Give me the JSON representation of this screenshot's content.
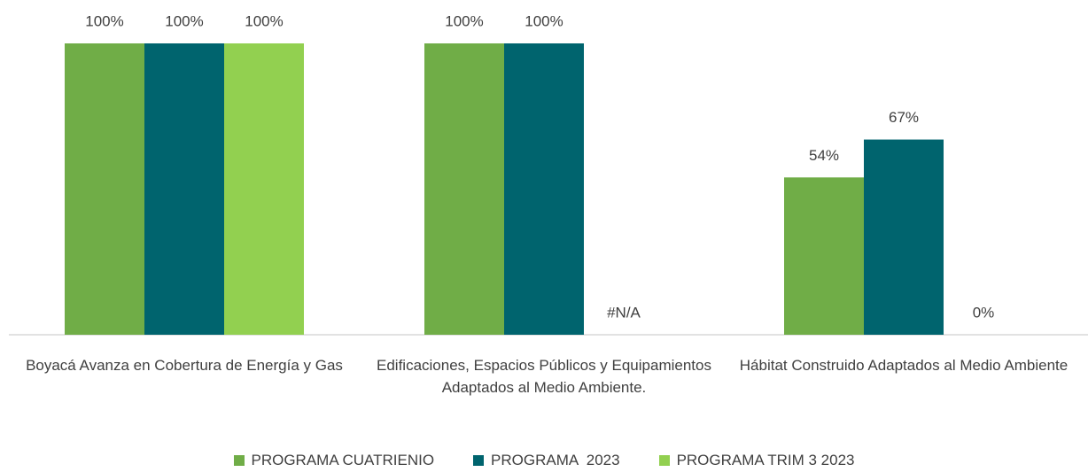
{
  "chart_data": {
    "type": "bar",
    "categories": [
      "Boyacá Avanza en Cobertura de Energía y Gas",
      "Edificaciones, Espacios Públicos y Equipamientos Adaptados al Medio Ambiente.",
      "Hábitat Construido Adaptados al Medio Ambiente"
    ],
    "series": [
      {
        "name": "PROGRAMA CUATRIENIO",
        "color": "#70ad47",
        "values": [
          100,
          100,
          54
        ],
        "value_labels": [
          "100%",
          "100%",
          "54%"
        ]
      },
      {
        "name": "PROGRAMA  2023",
        "color": "#00646e",
        "values": [
          100,
          100,
          67
        ],
        "value_labels": [
          "100%",
          "100%",
          "67%"
        ]
      },
      {
        "name": "PROGRAMA TRIM 3 2023",
        "color": "#92d050",
        "values": [
          100,
          null,
          0
        ],
        "value_labels": [
          "100%",
          "#N/A",
          "0%"
        ]
      }
    ],
    "ylim": [
      0,
      100
    ],
    "legend": "bottom"
  }
}
